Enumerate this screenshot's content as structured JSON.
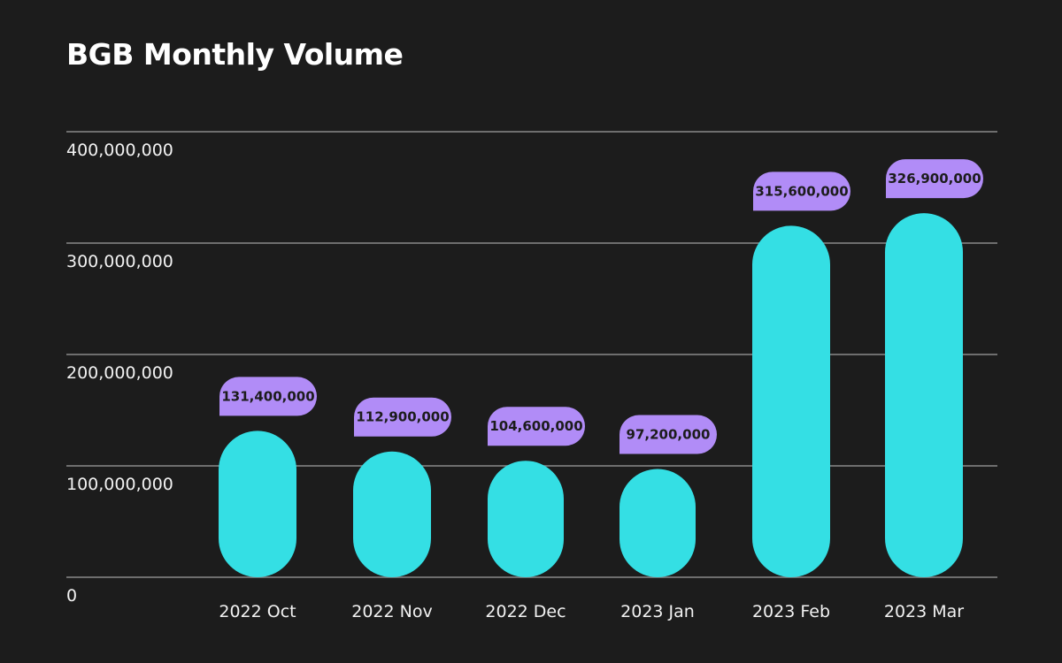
{
  "chart_data": {
    "type": "bar",
    "title": "BGB Monthly Volume",
    "xlabel": "",
    "ylabel": "",
    "categories": [
      "2022 Oct",
      "2022 Nov",
      "2022 Dec",
      "2023 Jan",
      "2023 Feb",
      "2023 Mar"
    ],
    "values": [
      131400000,
      112900000,
      104600000,
      97200000,
      315600000,
      326900000
    ],
    "data_labels": [
      "131,400,000",
      "112,900,000",
      "104,600,000",
      "97,200,000",
      "315,600,000",
      "326,900,000"
    ],
    "ylim": [
      0,
      400000000
    ],
    "yticks": [
      0,
      100000000,
      200000000,
      300000000,
      400000000
    ],
    "ytick_labels": [
      "0",
      "100,000,000",
      "200,000,000",
      "300,000,000",
      "400,000,000"
    ],
    "grid": true,
    "legend": "none"
  },
  "colors": {
    "background": "#1c1c1c",
    "bar": "#34dfe4",
    "label_bubble": "#b18cf7",
    "gridline": "#8a8a8a",
    "text": "#ffffff",
    "label_text": "#1c1c1c"
  }
}
